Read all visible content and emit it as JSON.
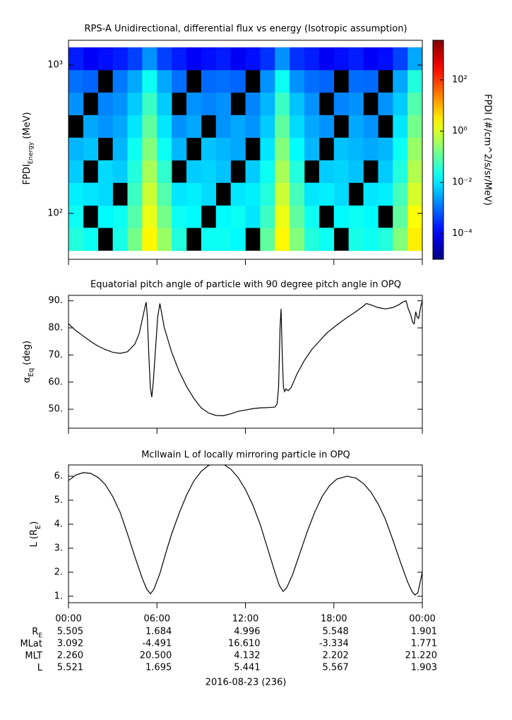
{
  "chart_data": [
    {
      "type": "heatmap",
      "title": "RPS-A Unidirectional, differential flux vs energy (Isotropic assumption)",
      "ylabel": "FPDI",
      "ylabel_sub": "Energy",
      "ylabel_unit": "(MeV)",
      "clabel": "FPDI (#/cm^2/s/sr/MeV)",
      "log_y": true,
      "log_c": true,
      "xlim": [
        0,
        24
      ],
      "xticks": [
        0,
        6,
        12,
        18,
        24
      ],
      "ylim": [
        49,
        1470
      ],
      "yticks": [
        {
          "value": 100,
          "label": "10²"
        },
        {
          "value": 1000,
          "label": "10³"
        }
      ],
      "clim": [
        1e-05,
        3500
      ],
      "cticks": [
        {
          "value": 0.0001,
          "label": "10⁻⁴"
        },
        {
          "value": 0.01,
          "label": "10⁻²"
        },
        {
          "value": 1,
          "label": "10⁰"
        },
        {
          "value": 100,
          "label": "10²"
        }
      ],
      "x_bins": [
        0,
        1,
        2,
        3,
        4,
        5,
        6,
        7,
        8,
        9,
        10,
        11,
        12,
        13,
        14,
        15,
        16,
        17,
        18,
        19,
        20,
        21,
        22,
        23,
        24
      ],
      "y_bins": [
        56,
        80,
        113,
        161,
        228,
        324,
        460,
        653,
        927,
        1315
      ],
      "z": [
        [
          0.03,
          0.02,
          null,
          0.025,
          0.15,
          2.5,
          0.3,
          0.03,
          null,
          0.02,
          0.02,
          0.015,
          null,
          0.1,
          2.5,
          0.2,
          0.03,
          0.02,
          null,
          0.025,
          0.02,
          0.03,
          0.2,
          3
        ],
        [
          0.02,
          null,
          0.015,
          0.02,
          0.08,
          1.5,
          0.15,
          0.02,
          0.015,
          null,
          0.015,
          0.02,
          0.01,
          0.05,
          1.5,
          0.1,
          0.02,
          null,
          0.015,
          0.02,
          0.015,
          null,
          0.1,
          2
        ],
        [
          0.012,
          0.01,
          0.008,
          null,
          0.05,
          0.8,
          0.08,
          0.01,
          0.012,
          0.008,
          null,
          0.01,
          0.012,
          0.03,
          0.8,
          0.06,
          0.01,
          0.012,
          0.008,
          null,
          0.01,
          0.012,
          0.06,
          1
        ],
        [
          0.006,
          null,
          0.008,
          0.006,
          0.03,
          0.4,
          0.04,
          null,
          0.006,
          0.007,
          0.005,
          null,
          0.006,
          0.02,
          0.4,
          0.03,
          null,
          0.006,
          0.007,
          0.005,
          null,
          0.006,
          0.03,
          0.5
        ],
        [
          0.004,
          0.005,
          null,
          0.004,
          0.02,
          0.2,
          0.02,
          0.004,
          null,
          0.005,
          0.004,
          0.003,
          null,
          0.01,
          0.2,
          0.015,
          0.004,
          null,
          0.005,
          0.004,
          0.003,
          0.004,
          0.02,
          0.3
        ],
        [
          null,
          0.003,
          0.002,
          0.003,
          0.01,
          0.1,
          0.01,
          0.002,
          0.003,
          null,
          0.002,
          0.003,
          0.002,
          0.006,
          0.1,
          0.008,
          0.003,
          0.002,
          null,
          0.003,
          0.002,
          null,
          0.01,
          0.15
        ],
        [
          0.002,
          null,
          0.0015,
          0.002,
          0.006,
          0.05,
          0.006,
          null,
          0.002,
          0.0015,
          0.002,
          null,
          0.0015,
          0.004,
          0.05,
          0.005,
          0.002,
          null,
          0.0015,
          0.002,
          null,
          0.002,
          0.006,
          0.08
        ],
        [
          0.001,
          0.0008,
          null,
          0.0012,
          0.003,
          0.02,
          0.003,
          0.001,
          null,
          0.0009,
          0.001,
          0.0008,
          null,
          0.002,
          0.02,
          0.002,
          0.001,
          0.0008,
          null,
          0.001,
          0.0009,
          null,
          0.003,
          0.03
        ],
        [
          0.0002,
          0.0001,
          0.00015,
          0.0002,
          0.0004,
          0.002,
          0.0004,
          0.0002,
          0.0001,
          0.00015,
          0.0002,
          0.0001,
          0.00015,
          0.0003,
          0.002,
          0.0003,
          0.0002,
          0.0001,
          0.00015,
          0.0002,
          0.0001,
          0.00015,
          0.0004,
          0.003
        ]
      ]
    },
    {
      "type": "line",
      "title": "Equatorial pitch angle of particle with 90 degree pitch angle in OPQ",
      "ylabel": "α",
      "ylabel_sub": "Eq",
      "ylabel_unit": "(deg)",
      "color": "#000000",
      "xlim": [
        0,
        24
      ],
      "xticks": [
        0,
        6,
        12,
        18,
        24
      ],
      "ylim": [
        43,
        92
      ],
      "yticks": [
        {
          "value": 50,
          "label": "50."
        },
        {
          "value": 60,
          "label": "60."
        },
        {
          "value": 70,
          "label": "70."
        },
        {
          "value": 80,
          "label": "80."
        },
        {
          "value": 90,
          "label": "90."
        }
      ],
      "x": [
        0,
        0.5,
        1,
        1.5,
        2,
        2.5,
        3,
        3.5,
        4,
        4.5,
        4.8,
        5.0,
        5.2,
        5.27,
        5.35,
        5.45,
        5.55,
        5.65,
        5.75,
        5.9,
        6.05,
        6.2,
        6.3,
        6.5,
        7,
        7.5,
        8,
        8.5,
        9,
        9.5,
        10,
        10.5,
        11,
        11.5,
        12,
        12.5,
        13,
        13.5,
        14,
        14.15,
        14.25,
        14.35,
        14.42,
        14.5,
        14.58,
        14.66,
        14.75,
        14.9,
        15.1,
        15.5,
        16,
        16.5,
        17,
        17.5,
        18,
        18.5,
        19,
        19.5,
        20,
        20.2,
        20.5,
        21,
        21.5,
        22,
        22.4,
        22.7,
        22.9,
        23.05,
        23.2,
        23.35,
        23.45,
        23.55,
        23.65,
        23.75,
        23.9,
        24
      ],
      "values": [
        81.5,
        79,
        77,
        75,
        73.3,
        72,
        71,
        70.6,
        71.2,
        74,
        78,
        83,
        88,
        89.5,
        84,
        70,
        58,
        54.5,
        60,
        72,
        84,
        89,
        86,
        80,
        71,
        64,
        58.5,
        54,
        50.5,
        48.6,
        47.7,
        47.6,
        48.3,
        49.2,
        49.7,
        50.2,
        50.5,
        50.6,
        50.8,
        52,
        58,
        80,
        87,
        70,
        58,
        56.5,
        57.5,
        56.8,
        58,
        63,
        68,
        72,
        75,
        78,
        80.2,
        82.3,
        84.2,
        86,
        88,
        89,
        88.5,
        87.5,
        87,
        87.5,
        88.5,
        89.6,
        90,
        87,
        85,
        82,
        81.5,
        86,
        84,
        83.5,
        88,
        90
      ]
    },
    {
      "type": "line",
      "title": "McIlwain L of locally mirroring particle in OPQ",
      "ylabel": "L",
      "ylabel_sub": "E",
      "ylabel_unit": "(R",
      "ylabel_close": ")",
      "color": "#000000",
      "xlim": [
        0,
        24
      ],
      "xticks": [
        {
          "value": 0,
          "label": "00:00"
        },
        {
          "value": 6,
          "label": "06:00"
        },
        {
          "value": 12,
          "label": "12:00"
        },
        {
          "value": 18,
          "label": "18:00"
        },
        {
          "value": 24,
          "label": "00:00"
        }
      ],
      "ylim": [
        0.73,
        6.47
      ],
      "yticks": [
        {
          "value": 1,
          "label": "1."
        },
        {
          "value": 2,
          "label": "2."
        },
        {
          "value": 3,
          "label": "3."
        },
        {
          "value": 4,
          "label": "4."
        },
        {
          "value": 5,
          "label": "5."
        },
        {
          "value": 6,
          "label": "6."
        }
      ],
      "x": [
        0,
        0.5,
        1,
        1.5,
        2,
        2.5,
        3,
        3.5,
        4,
        4.5,
        5,
        5.3,
        5.56,
        5.8,
        6.2,
        6.6,
        7,
        7.5,
        8,
        8.5,
        9,
        9.5,
        10,
        10.5,
        11,
        11.5,
        12,
        12.5,
        13,
        13.5,
        14,
        14.3,
        14.56,
        14.8,
        15.2,
        15.7,
        16.2,
        16.7,
        17.2,
        17.7,
        18.2,
        18.9,
        19.5,
        20,
        20.5,
        21,
        21.5,
        22,
        22.5,
        23,
        23.3,
        23.5,
        23.7,
        24
      ],
      "values": [
        5.82,
        6.05,
        6.15,
        6.12,
        5.95,
        5.65,
        5.15,
        4.5,
        3.6,
        2.65,
        1.75,
        1.3,
        1.1,
        1.3,
        1.95,
        2.8,
        3.6,
        4.45,
        5.2,
        5.8,
        6.2,
        6.45,
        6.55,
        6.5,
        6.3,
        5.95,
        5.45,
        4.8,
        4.0,
        3.0,
        2.0,
        1.45,
        1.2,
        1.35,
        1.9,
        2.8,
        3.7,
        4.5,
        5.15,
        5.6,
        5.88,
        6.0,
        5.92,
        5.7,
        5.35,
        4.85,
        4.2,
        3.35,
        2.45,
        1.6,
        1.2,
        1.05,
        1.15,
        2.0
      ]
    }
  ],
  "ephemeris": {
    "rows": [
      {
        "label": "R",
        "label_sub": "E",
        "values": [
          "5.505",
          "1.684",
          "4.996",
          "5.548",
          "1.901"
        ]
      },
      {
        "label": "MLat",
        "values": [
          "3.092",
          "-4.491",
          "16.610",
          "-3.334",
          "1.771"
        ]
      },
      {
        "label": "MLT",
        "values": [
          "2.260",
          "20.500",
          "4.132",
          "2.202",
          "21.220"
        ]
      },
      {
        "label": "L",
        "values": [
          "5.521",
          "1.695",
          "5.441",
          "5.567",
          "1.903"
        ]
      }
    ],
    "date": "2016-08-23 (236)"
  }
}
